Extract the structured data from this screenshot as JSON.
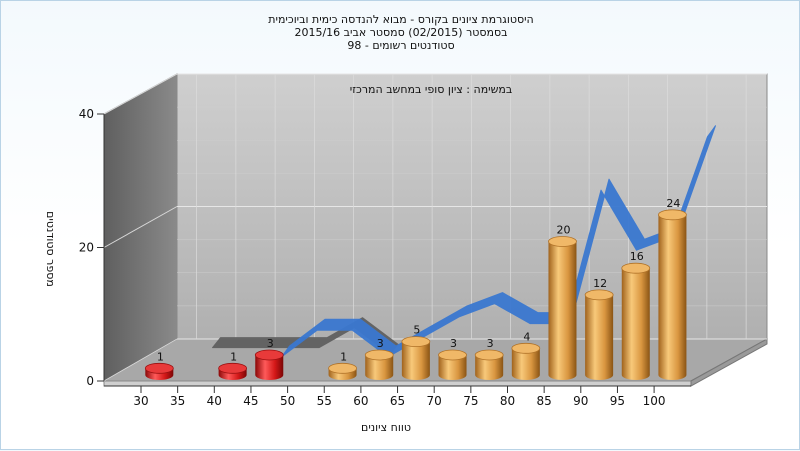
{
  "title_lines": [
    "היסטוגרמת ציונים בקורס - מבוא להנדסה כימית וביוכימית",
    "בסמסטר  (02/2015)  סמסטר אביב 2015/16",
    "סטודנטים רשומים - 98"
  ],
  "chart_data": {
    "type": "bar",
    "title": "היסטוגרמת ציונים בקורס - מבוא להנדסה כימית וביוכימית",
    "subtitle": "במשימה : ציון סופי במחשב המרכזי",
    "xlabel": "טווח ציונים",
    "ylabel": "מספר סטודנטים",
    "ylim": [
      0,
      40
    ],
    "yticks": [
      0,
      20,
      40
    ],
    "xticks": [
      "30",
      "35",
      "40",
      "45",
      "50",
      "55",
      "60",
      "65",
      "70",
      "75",
      "80",
      "85",
      "90",
      "95",
      "100"
    ],
    "bars": [
      {
        "x": 32.5,
        "value": 1,
        "label": "1",
        "color": "#d01818"
      },
      {
        "x": 42.5,
        "value": 1,
        "label": "1",
        "color": "#d01818"
      },
      {
        "x": 47.5,
        "value": 3,
        "label": "3",
        "color": "#d01818"
      },
      {
        "x": 57.5,
        "value": 1,
        "label": "1",
        "color": "#e0a050"
      },
      {
        "x": 62.5,
        "value": 3,
        "label": "3",
        "color": "#e0a050"
      },
      {
        "x": 67.5,
        "value": 5,
        "label": "5",
        "color": "#e0a050"
      },
      {
        "x": 72.5,
        "value": 3,
        "label": "3",
        "color": "#e0a050"
      },
      {
        "x": 77.5,
        "value": 3,
        "label": "3",
        "color": "#e0a050"
      },
      {
        "x": 82.5,
        "value": 4,
        "label": "4",
        "color": "#e0a050"
      },
      {
        "x": 87.5,
        "value": 20,
        "label": "20",
        "color": "#e0a050"
      },
      {
        "x": 92.5,
        "value": 12,
        "label": "12",
        "color": "#e0a050"
      },
      {
        "x": 97.5,
        "value": 16,
        "label": "16",
        "color": "#e0a050"
      },
      {
        "x": 102.5,
        "value": 24,
        "label": "24",
        "color": "#e0a050"
      }
    ],
    "background_series": [
      {
        "name": "",
        "color": "#606060",
        "x": [
          35,
          40,
          45,
          50,
          55,
          60
        ],
        "values": [
          2,
          2,
          2,
          2,
          5,
          1
        ]
      },
      {
        "name": "",
        "color": "#3a78d0",
        "x": [
          45,
          50,
          55,
          60,
          65,
          70,
          75,
          80,
          85,
          90,
          95,
          100,
          105
        ],
        "values": [
          0,
          4,
          4,
          0,
          3,
          6,
          8,
          5,
          5,
          25,
          16,
          18,
          33
        ]
      }
    ],
    "grid": true,
    "legend": "none"
  }
}
